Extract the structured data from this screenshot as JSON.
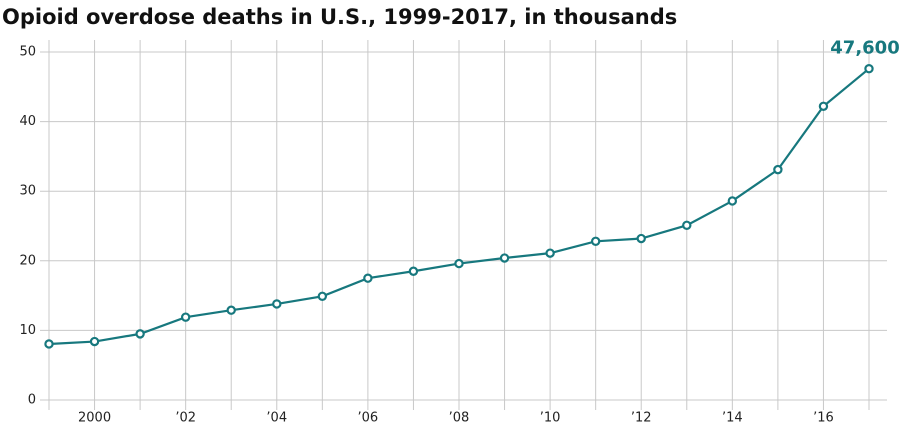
{
  "chart_data": {
    "type": "line",
    "title": "Opioid overdose deaths in U.S., 1999-2017, in thousands",
    "x": [
      1999,
      2000,
      2001,
      2002,
      2003,
      2004,
      2005,
      2006,
      2007,
      2008,
      2009,
      2010,
      2011,
      2012,
      2013,
      2014,
      2015,
      2016,
      2017
    ],
    "values": [
      8.05,
      8.4,
      9.5,
      11.9,
      12.9,
      13.8,
      14.9,
      17.5,
      18.5,
      19.6,
      20.4,
      21.1,
      22.8,
      23.2,
      25.1,
      28.6,
      33.1,
      42.2,
      47.6
    ],
    "value_labels": [
      null,
      null,
      null,
      null,
      null,
      null,
      null,
      null,
      null,
      null,
      null,
      null,
      null,
      null,
      null,
      null,
      null,
      null,
      "47,600"
    ],
    "color": "#17787e",
    "xlim": [
      1999,
      2017
    ],
    "xticks": [
      2000,
      {
        "value": 2002,
        "label": "’02"
      },
      {
        "value": 2004,
        "label": "’04"
      },
      {
        "value": 2006,
        "label": "’06"
      },
      {
        "value": 2008,
        "label": "’08"
      },
      {
        "value": 2010,
        "label": "’10"
      },
      {
        "value": 2012,
        "label": "’12"
      },
      {
        "value": 2014,
        "label": "’14"
      },
      {
        "value": 2016,
        "label": "’16"
      }
    ],
    "ylim": [
      0,
      50
    ],
    "yticks": [
      0,
      10,
      20,
      30,
      40,
      50
    ],
    "grid": true
  }
}
